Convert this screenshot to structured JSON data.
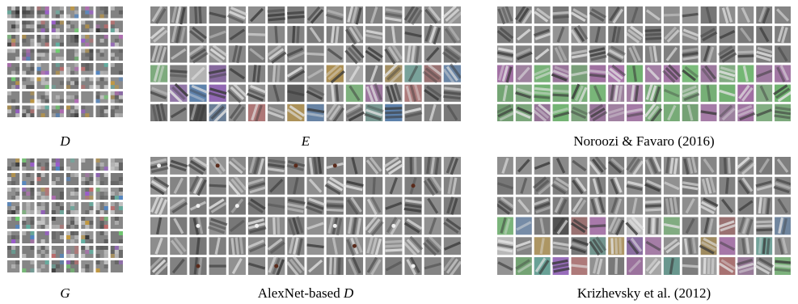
{
  "captions": {
    "d": "D",
    "e": "E",
    "noroozi": "Noroozi & Favaro (2016)",
    "g": "G",
    "alexnet_prefix": "AlexNet-based ",
    "alexnet_var": "D",
    "krizhevsky": "Krizhevsky et al. (2012)"
  },
  "figure": {
    "background": "#ffffff",
    "tile_base": "#8a8a8a",
    "accent_colors": [
      "#4f86c6",
      "#c79a3a",
      "#b46bb7",
      "#5fb3a3",
      "#c46a6a",
      "#6ed36e",
      "#9b59d0",
      "#d9d9d9",
      "#2f2f2f"
    ]
  }
}
